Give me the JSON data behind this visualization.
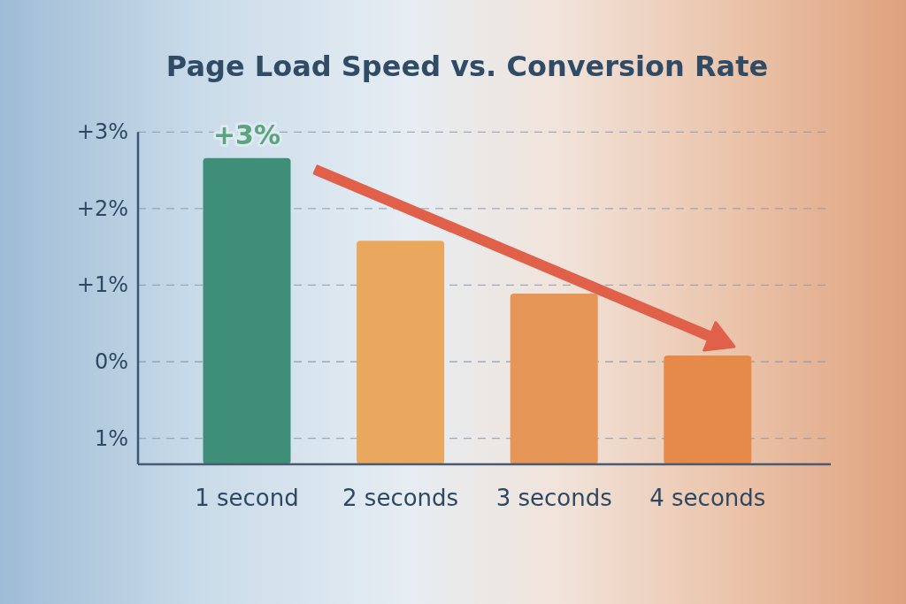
{
  "chart_data": {
    "type": "bar",
    "title": "Page Load Speed vs. Conversion Rate",
    "categories": [
      "1 second",
      "2 seconds",
      "3 seconds",
      "4 seconds"
    ],
    "base": [
      -1.34,
      -1.34,
      -1.34,
      -1.34
    ],
    "values": [
      4.0,
      2.92,
      2.23,
      1.42
    ],
    "colors": [
      "#3f8f78",
      "#e9a85e",
      "#e69657",
      "#e58a48"
    ],
    "ylim": [
      -1.34,
      3
    ],
    "yticks": [
      {
        "value": 3,
        "label": "+3%"
      },
      {
        "value": 2,
        "label": "+2%"
      },
      {
        "value": 1,
        "label": "+1%"
      },
      {
        "value": 0,
        "label": "0%"
      },
      {
        "value": -1,
        "label": "1%"
      }
    ],
    "grid": "y",
    "annotations": [
      {
        "text": "+3%",
        "x": "1 second",
        "y": 2.66
      }
    ]
  }
}
